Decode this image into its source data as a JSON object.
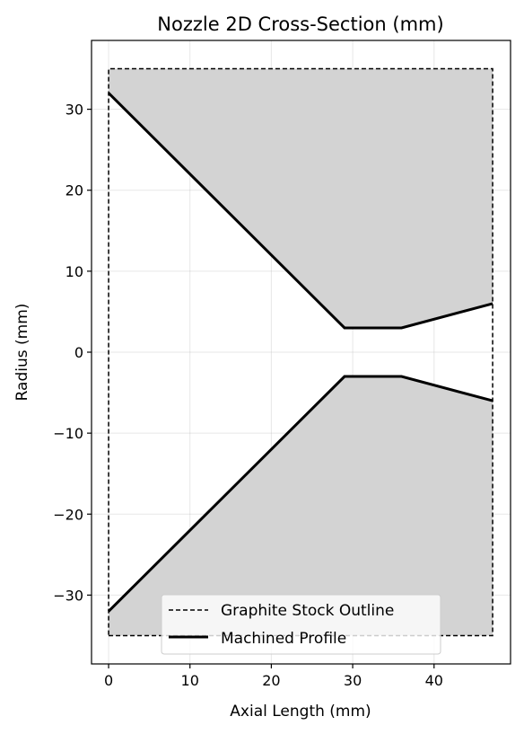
{
  "chart_data": {
    "type": "line",
    "title": "Nozzle 2D Cross-Section (mm)",
    "xlabel": "Axial Length (mm)",
    "ylabel": "Radius (mm)",
    "xlim": [
      -2.1,
      49.4
    ],
    "ylim": [
      -38.5,
      38.5
    ],
    "grid": true,
    "legend_position": "bottom-center",
    "x_ticks": [
      0,
      10,
      20,
      30,
      40
    ],
    "y_ticks": [
      30,
      20,
      10,
      0,
      -10,
      -20,
      -30
    ],
    "x_tick_labels": [
      "0",
      "10",
      "20",
      "30",
      "40"
    ],
    "y_tick_labels": [
      "30",
      "20",
      "10",
      "0",
      "−10",
      "−20",
      "−30"
    ],
    "series": [
      {
        "name": "Graphite Stock Outline",
        "style": "dashed",
        "color": "#000000",
        "x": [
          0,
          47.2,
          47.2,
          0,
          0
        ],
        "y": [
          -35,
          -35,
          35,
          35,
          -35
        ]
      },
      {
        "name": "Machined Profile",
        "style": "solid",
        "color": "#000000",
        "upper": {
          "x": [
            0,
            29,
            36,
            47.2
          ],
          "y": [
            32,
            3,
            3,
            6
          ]
        },
        "lower": {
          "x": [
            0,
            29,
            36,
            47.2
          ],
          "y": [
            -32,
            -3,
            -3,
            -6
          ]
        }
      }
    ],
    "fill_color": "#d3d3d3"
  }
}
